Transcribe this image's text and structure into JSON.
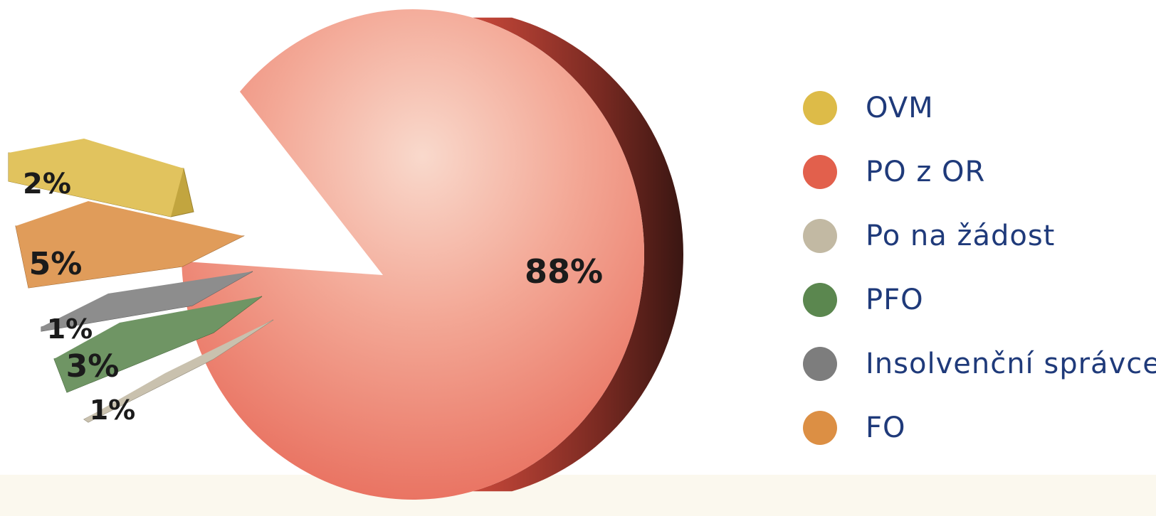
{
  "chart_data": {
    "type": "pie",
    "title": "",
    "slices": [
      {
        "label": "PO z OR",
        "value": 88,
        "value_label": "88%",
        "color": "#e2604c"
      },
      {
        "label": "OVM",
        "value": 2,
        "value_label": "2%",
        "color": "#ddbb48"
      },
      {
        "label": "FO",
        "value": 5,
        "value_label": "5%",
        "color": "#dc8f44"
      },
      {
        "label": "Insolvenční správce",
        "value": 1,
        "value_label": "1%",
        "color": "#7d7d7d"
      },
      {
        "label": "PFO",
        "value": 3,
        "value_label": "3%",
        "color": "#5b874f"
      },
      {
        "label": "Po na žádost",
        "value": 1,
        "value_label": "1%",
        "color": "#c2b9a3"
      }
    ],
    "legend": [
      {
        "label": "OVM",
        "color": "#ddbb48"
      },
      {
        "label": "PO z OR",
        "color": "#e2604c"
      },
      {
        "label": "Po na žádost",
        "color": "#c2b9a3"
      },
      {
        "label": "PFO",
        "color": "#5b874f"
      },
      {
        "label": "Insolvenční správce",
        "color": "#7d7d7d"
      },
      {
        "label": "FO",
        "color": "#dc8f44"
      }
    ],
    "legend_position": "right"
  }
}
